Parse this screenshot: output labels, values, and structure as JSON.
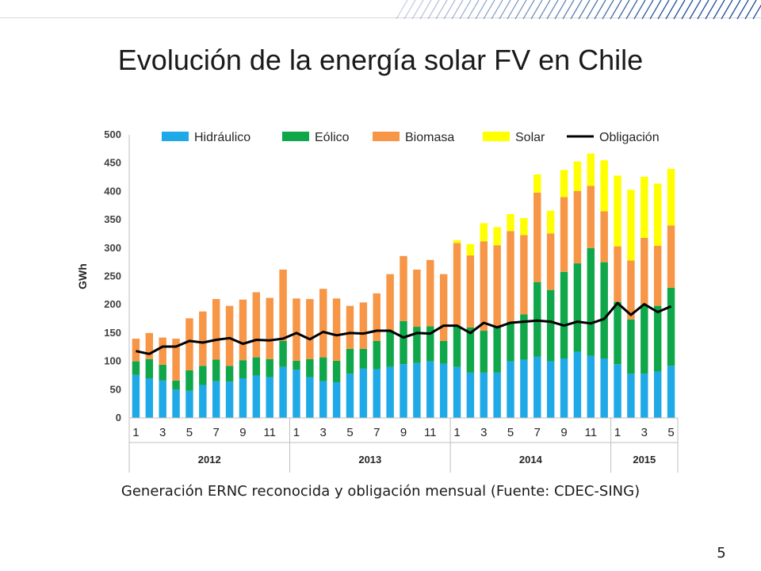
{
  "slide": {
    "title": "Evolución de la energía solar FV en Chile",
    "caption": "Generación ERNC reconocida y obligación mensual (Fuente: CDEC-SING)",
    "page_number": "5"
  },
  "chart_data": {
    "type": "bar",
    "stacked": true,
    "ylabel": "GWh",
    "ylim": [
      0,
      500
    ],
    "yticks": [
      0,
      50,
      100,
      150,
      200,
      250,
      300,
      350,
      400,
      450,
      500
    ],
    "grid": false,
    "legend_position": "top",
    "categories": [
      "1",
      "2",
      "3",
      "4",
      "5",
      "6",
      "7",
      "8",
      "9",
      "10",
      "11",
      "12",
      "1",
      "2",
      "3",
      "4",
      "5",
      "6",
      "7",
      "8",
      "9",
      "10",
      "11",
      "12",
      "1",
      "2",
      "3",
      "4",
      "5",
      "6",
      "7",
      "8",
      "9",
      "10",
      "11",
      "12",
      "1",
      "2",
      "3",
      "4",
      "5"
    ],
    "tick_labels": [
      "1",
      "",
      "3",
      "",
      "5",
      "",
      "7",
      "",
      "9",
      "",
      "11",
      "",
      "1",
      "",
      "3",
      "",
      "5",
      "",
      "7",
      "",
      "9",
      "",
      "11",
      "",
      "1",
      "",
      "3",
      "",
      "5",
      "",
      "7",
      "",
      "9",
      "",
      "11",
      "",
      "1",
      "",
      "3",
      "",
      "5"
    ],
    "years": [
      {
        "label": "2012",
        "start": 0,
        "count": 12
      },
      {
        "label": "2013",
        "start": 12,
        "count": 12
      },
      {
        "label": "2014",
        "start": 24,
        "count": 12
      },
      {
        "label": "2015",
        "start": 36,
        "count": 5
      }
    ],
    "series": [
      {
        "name": "Hidráulico",
        "color": "#1fa9e6",
        "kind": "bar",
        "values": [
          76,
          70,
          66,
          50,
          48,
          58,
          65,
          64,
          70,
          75,
          72,
          90,
          85,
          72,
          65,
          63,
          78,
          87,
          86,
          90,
          95,
          97,
          100,
          96,
          90,
          80,
          80,
          80,
          100,
          103,
          108,
          100,
          105,
          117,
          110,
          105,
          95,
          78,
          78,
          82,
          92
        ]
      },
      {
        "name": "Eólico",
        "color": "#10a64a",
        "kind": "bar",
        "values": [
          24,
          34,
          28,
          16,
          36,
          34,
          38,
          28,
          32,
          32,
          32,
          46,
          16,
          32,
          42,
          38,
          44,
          35,
          50,
          64,
          76,
          64,
          62,
          40,
          72,
          80,
          74,
          80,
          70,
          80,
          132,
          126,
          153,
          156,
          190,
          170,
          110,
          96,
          122,
          116,
          138
        ]
      },
      {
        "name": "Biomasa",
        "color": "#f79646",
        "kind": "bar",
        "values": [
          40,
          46,
          48,
          74,
          92,
          96,
          107,
          106,
          107,
          115,
          108,
          126,
          110,
          106,
          121,
          110,
          76,
          82,
          84,
          100,
          115,
          101,
          117,
          118,
          147,
          127,
          158,
          145,
          160,
          140,
          158,
          100,
          132,
          128,
          110,
          90,
          98,
          104,
          118,
          106,
          110
        ]
      },
      {
        "name": "Solar",
        "color": "#ffff00",
        "kind": "bar",
        "values": [
          0,
          0,
          0,
          0,
          0,
          0,
          0,
          0,
          0,
          0,
          0,
          0,
          0,
          0,
          0,
          0,
          0,
          0,
          0,
          0,
          0,
          0,
          0,
          0,
          5,
          20,
          32,
          32,
          30,
          30,
          32,
          40,
          48,
          52,
          57,
          90,
          125,
          125,
          108,
          110,
          100
        ]
      },
      {
        "name": "Obligación",
        "color": "#000000",
        "kind": "line",
        "values": [
          118,
          113,
          126,
          126,
          136,
          133,
          138,
          141,
          131,
          138,
          137,
          140,
          150,
          139,
          152,
          146,
          150,
          149,
          154,
          154,
          142,
          150,
          149,
          163,
          163,
          150,
          168,
          160,
          168,
          170,
          172,
          170,
          163,
          170,
          167,
          175,
          203,
          182,
          201,
          187,
          197
        ]
      }
    ]
  }
}
